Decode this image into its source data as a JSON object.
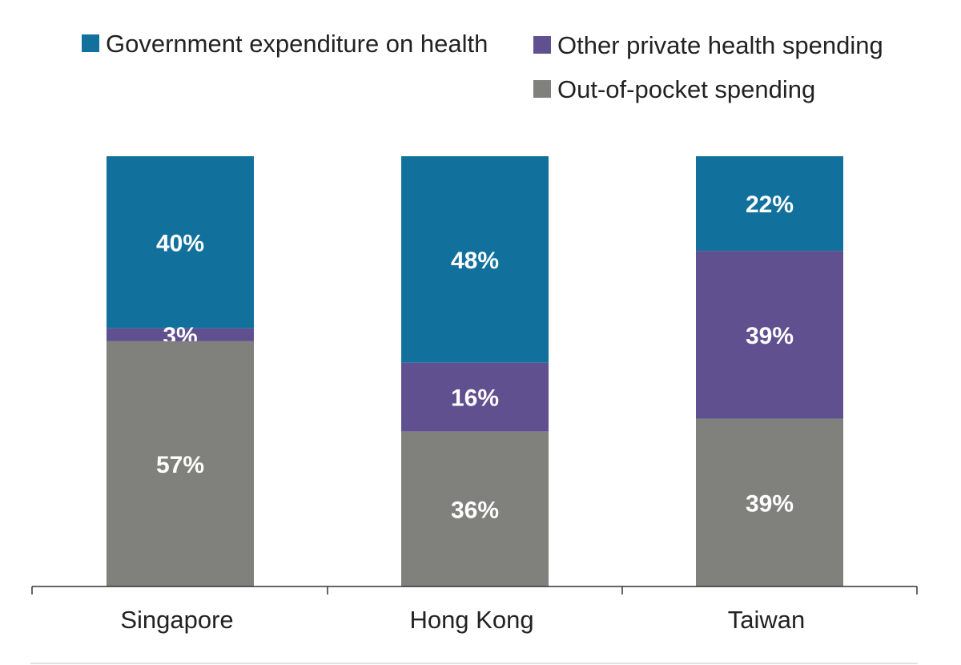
{
  "chart_data": {
    "type": "bar",
    "stacked": true,
    "categories": [
      "Singapore",
      "Hong Kong",
      "Taiwan"
    ],
    "series": [
      {
        "name": "Government expenditure on health",
        "color": "#11719c",
        "values": [
          40,
          48,
          22
        ],
        "labels": [
          "40%",
          "48%",
          "22%"
        ]
      },
      {
        "name": "Other private health spending",
        "color": "#60508f",
        "values": [
          3,
          16,
          39
        ],
        "labels": [
          "3%",
          "16%",
          "39%"
        ]
      },
      {
        "name": "Out-of-pocket spending",
        "color": "#80817c",
        "values": [
          57,
          36,
          39
        ],
        "labels": [
          "57%",
          "36%",
          "39%"
        ]
      }
    ],
    "ylim": [
      0,
      100
    ],
    "grid": false,
    "legend_position": "top"
  }
}
